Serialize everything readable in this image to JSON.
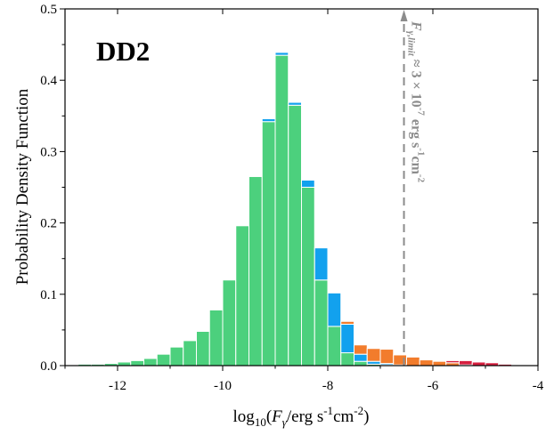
{
  "chart_data": {
    "type": "bar",
    "stacked": true,
    "panel_label": "DD2",
    "xlabel": {
      "main": "log",
      "sub": "10",
      "open": "(",
      "var": "F",
      "var_sub": "γ",
      "unit": "/erg s",
      "sup1": "-1",
      "cm": "cm",
      "sup2": "-2",
      "close": ")"
    },
    "ylabel": "Probability Density Function",
    "xlim": [
      -13.0,
      -4.0
    ],
    "ylim": [
      0.0,
      0.5
    ],
    "xticks": [
      -12,
      -10,
      -8,
      -6,
      -4
    ],
    "yticks": [
      0.0,
      0.1,
      0.2,
      0.3,
      0.4,
      0.5
    ],
    "x_tick_labels": [
      "-12",
      "-10",
      "-8",
      "-6",
      "-4"
    ],
    "y_tick_labels": [
      "0.0",
      "0.1",
      "0.2",
      "0.3",
      "0.4",
      "0.5"
    ],
    "bin_width": 0.25,
    "bin_starts": [
      -12.75,
      -12.5,
      -12.25,
      -12.0,
      -11.75,
      -11.5,
      -11.25,
      -11.0,
      -10.75,
      -10.5,
      -10.25,
      -10.0,
      -9.75,
      -9.5,
      -9.25,
      -9.0,
      -8.75,
      -8.5,
      -8.25,
      -8.0,
      -7.75,
      -7.5,
      -7.25,
      -7.0,
      -6.75,
      -6.5,
      -6.25,
      -6.0,
      -5.75,
      -5.5,
      -5.25,
      -5.0,
      -4.75
    ],
    "series": [
      {
        "color": "#4cd07d",
        "values": [
          0.002,
          0.002,
          0.003,
          0.005,
          0.007,
          0.01,
          0.016,
          0.026,
          0.035,
          0.048,
          0.078,
          0.12,
          0.196,
          0.265,
          0.342,
          0.435,
          0.365,
          0.25,
          0.12,
          0.055,
          0.018,
          0.006,
          0.002,
          0.001,
          0,
          0,
          0,
          0,
          0,
          0,
          0,
          0,
          0
        ]
      },
      {
        "color": "#12a1ee",
        "values": [
          0,
          0,
          0,
          0,
          0,
          0,
          0,
          0,
          0,
          0,
          0,
          0,
          0,
          0,
          0.004,
          0.004,
          0.004,
          0.01,
          0.045,
          0.047,
          0.04,
          0.01,
          0.004,
          0.002,
          0.001,
          0,
          0,
          0,
          0,
          0,
          0,
          0,
          0
        ]
      },
      {
        "color": "#f27c2c",
        "values": [
          0,
          0,
          0,
          0,
          0,
          0,
          0,
          0,
          0,
          0,
          0,
          0,
          0,
          0,
          0,
          0,
          0,
          0,
          0,
          0.001,
          0.004,
          0.013,
          0.018,
          0.02,
          0.014,
          0.012,
          0.008,
          0.006,
          0.004,
          0.001,
          0,
          0,
          0
        ]
      },
      {
        "color": "#d61f3f",
        "values": [
          0,
          0,
          0,
          0,
          0,
          0,
          0,
          0,
          0,
          0,
          0,
          0,
          0,
          0,
          0,
          0,
          0,
          0,
          0,
          0,
          0,
          0,
          0,
          0,
          0,
          0,
          0,
          0,
          0.003,
          0.006,
          0.005,
          0.004,
          0.002
        ]
      }
    ],
    "limit_line": {
      "x": -6.55,
      "color": "#8c8c8c",
      "label": {
        "F": "F",
        "sub": "γ,limit",
        "approx": " ≈ 3 × 10",
        "exp": "-7",
        "unit": " erg s",
        "sup1": "-1",
        "cm": "cm",
        "sup2": "-2"
      }
    },
    "grid": false,
    "legend": "none"
  }
}
